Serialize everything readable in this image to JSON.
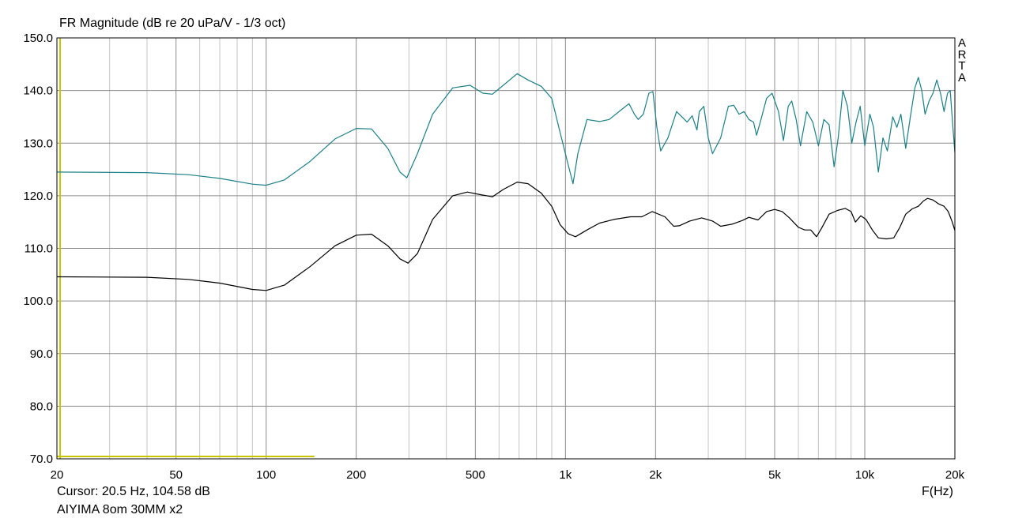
{
  "chart_data": {
    "type": "line",
    "title": "FR Magnitude (dB re 20 uPa/V - 1/3 oct)",
    "xlabel": "F(Hz)",
    "ylabel": "",
    "xscale": "log",
    "xlim": [
      20,
      20000
    ],
    "ylim": [
      70,
      150
    ],
    "grid": true,
    "x_ticks": [
      {
        "value": 20,
        "label": "20"
      },
      {
        "value": 50,
        "label": "50"
      },
      {
        "value": 100,
        "label": "100"
      },
      {
        "value": 200,
        "label": "200"
      },
      {
        "value": 500,
        "label": "500"
      },
      {
        "value": 1000,
        "label": "1k"
      },
      {
        "value": 2000,
        "label": "2k"
      },
      {
        "value": 5000,
        "label": "5k"
      },
      {
        "value": 10000,
        "label": "10k"
      },
      {
        "value": 20000,
        "label": "20k"
      }
    ],
    "y_ticks": [
      {
        "value": 150,
        "label": "150.0"
      },
      {
        "value": 140,
        "label": "140.0"
      },
      {
        "value": 130,
        "label": "130.0"
      },
      {
        "value": 120,
        "label": "120.0"
      },
      {
        "value": 110,
        "label": "110.0"
      },
      {
        "value": 100,
        "label": "100.0"
      },
      {
        "value": 90,
        "label": "90.0"
      },
      {
        "value": 80,
        "label": "80.0"
      },
      {
        "value": 70,
        "label": "70.0"
      }
    ],
    "series": [
      {
        "color": "#1a7f86",
        "points": [
          [
            20,
            124.5
          ],
          [
            40,
            124.4
          ],
          [
            55,
            124
          ],
          [
            70,
            123.3
          ],
          [
            90,
            122.2
          ],
          [
            100,
            122
          ],
          [
            115,
            123
          ],
          [
            140,
            126.5
          ],
          [
            170,
            130.8
          ],
          [
            200,
            132.8
          ],
          [
            225,
            132.7
          ],
          [
            255,
            129
          ],
          [
            280,
            124.5
          ],
          [
            295,
            123.4
          ],
          [
            320,
            128
          ],
          [
            360,
            135.5
          ],
          [
            420,
            140.5
          ],
          [
            480,
            141
          ],
          [
            530,
            139.5
          ],
          [
            570,
            139.3
          ],
          [
            620,
            141
          ],
          [
            690,
            143.2
          ],
          [
            750,
            142
          ],
          [
            830,
            140.8
          ],
          [
            900,
            138.5
          ],
          [
            960,
            132
          ],
          [
            1020,
            126
          ],
          [
            1060,
            122.3
          ],
          [
            1100,
            128
          ],
          [
            1180,
            134.5
          ],
          [
            1300,
            134.1
          ],
          [
            1400,
            134.5
          ],
          [
            1550,
            136.5
          ],
          [
            1630,
            137.5
          ],
          [
            1700,
            135.5
          ],
          [
            1750,
            134.5
          ],
          [
            1820,
            135.5
          ],
          [
            1900,
            139.5
          ],
          [
            1960,
            139.8
          ],
          [
            2020,
            133
          ],
          [
            2080,
            128.5
          ],
          [
            2200,
            131
          ],
          [
            2350,
            136
          ],
          [
            2450,
            135
          ],
          [
            2550,
            134
          ],
          [
            2650,
            135.2
          ],
          [
            2750,
            132.5
          ],
          [
            2800,
            136
          ],
          [
            2900,
            137
          ],
          [
            3000,
            131
          ],
          [
            3100,
            128
          ],
          [
            3300,
            131
          ],
          [
            3500,
            137
          ],
          [
            3650,
            137.2
          ],
          [
            3800,
            135.5
          ],
          [
            3950,
            136
          ],
          [
            4100,
            134.5
          ],
          [
            4250,
            134
          ],
          [
            4350,
            131.5
          ],
          [
            4500,
            134.5
          ],
          [
            4700,
            138.5
          ],
          [
            4900,
            139.5
          ],
          [
            5150,
            136
          ],
          [
            5350,
            130.5
          ],
          [
            5550,
            137
          ],
          [
            5700,
            138
          ],
          [
            5900,
            134.5
          ],
          [
            6100,
            129.5
          ],
          [
            6400,
            136
          ],
          [
            6700,
            134
          ],
          [
            7000,
            129.5
          ],
          [
            7300,
            134.5
          ],
          [
            7600,
            133.5
          ],
          [
            7900,
            125.5
          ],
          [
            8150,
            131
          ],
          [
            8450,
            140
          ],
          [
            8750,
            137
          ],
          [
            9050,
            130
          ],
          [
            9350,
            134
          ],
          [
            9650,
            137
          ],
          [
            10000,
            129.5
          ],
          [
            10400,
            135.5
          ],
          [
            10700,
            133
          ],
          [
            11100,
            124.5
          ],
          [
            11500,
            131
          ],
          [
            11900,
            128.5
          ],
          [
            12400,
            135
          ],
          [
            12800,
            133
          ],
          [
            13200,
            135.5
          ],
          [
            13700,
            129
          ],
          [
            14200,
            135
          ],
          [
            14700,
            140.5
          ],
          [
            15100,
            142.5
          ],
          [
            15500,
            140
          ],
          [
            15900,
            135.5
          ],
          [
            16400,
            138
          ],
          [
            16900,
            139.5
          ],
          [
            17400,
            142
          ],
          [
            17900,
            139.5
          ],
          [
            18400,
            136
          ],
          [
            18900,
            139.5
          ],
          [
            19300,
            140
          ],
          [
            19700,
            133
          ],
          [
            20000,
            128.2
          ]
        ]
      },
      {
        "color": "#000000",
        "points": [
          [
            20,
            104.6
          ],
          [
            40,
            104.5
          ],
          [
            55,
            104.1
          ],
          [
            70,
            103.4
          ],
          [
            90,
            102.2
          ],
          [
            100,
            102
          ],
          [
            115,
            103
          ],
          [
            140,
            106.5
          ],
          [
            170,
            110.5
          ],
          [
            200,
            112.5
          ],
          [
            225,
            112.7
          ],
          [
            255,
            110.5
          ],
          [
            280,
            108
          ],
          [
            298,
            107.2
          ],
          [
            320,
            109
          ],
          [
            360,
            115.5
          ],
          [
            420,
            120
          ],
          [
            470,
            120.7
          ],
          [
            520,
            120.2
          ],
          [
            570,
            119.8
          ],
          [
            620,
            121.2
          ],
          [
            690,
            122.6
          ],
          [
            750,
            122.3
          ],
          [
            830,
            120.5
          ],
          [
            900,
            118
          ],
          [
            960,
            114.5
          ],
          [
            1020,
            112.8
          ],
          [
            1080,
            112.2
          ],
          [
            1180,
            113.5
          ],
          [
            1300,
            114.8
          ],
          [
            1450,
            115.5
          ],
          [
            1650,
            116
          ],
          [
            1800,
            116
          ],
          [
            1950,
            117
          ],
          [
            2150,
            116
          ],
          [
            2300,
            114.2
          ],
          [
            2400,
            114.3
          ],
          [
            2600,
            115.2
          ],
          [
            2850,
            115.8
          ],
          [
            3100,
            115.2
          ],
          [
            3300,
            114.2
          ],
          [
            3600,
            114.6
          ],
          [
            3900,
            115.3
          ],
          [
            4100,
            115.9
          ],
          [
            4400,
            115.4
          ],
          [
            4700,
            117
          ],
          [
            5000,
            117.4
          ],
          [
            5300,
            117
          ],
          [
            5600,
            115.8
          ],
          [
            6000,
            114
          ],
          [
            6300,
            113.5
          ],
          [
            6600,
            113.5
          ],
          [
            6900,
            112.2
          ],
          [
            7200,
            114
          ],
          [
            7600,
            116.5
          ],
          [
            8100,
            117.2
          ],
          [
            8600,
            117.6
          ],
          [
            9000,
            117
          ],
          [
            9300,
            115
          ],
          [
            9700,
            116.2
          ],
          [
            10100,
            115.5
          ],
          [
            10600,
            113.5
          ],
          [
            11100,
            112
          ],
          [
            11800,
            111.8
          ],
          [
            12500,
            112
          ],
          [
            13100,
            114
          ],
          [
            13700,
            116.5
          ],
          [
            14400,
            117.5
          ],
          [
            15100,
            118
          ],
          [
            15700,
            119
          ],
          [
            16200,
            119.5
          ],
          [
            16900,
            119.2
          ],
          [
            17600,
            118.5
          ],
          [
            18400,
            118
          ],
          [
            19000,
            117
          ],
          [
            19600,
            115
          ],
          [
            20000,
            113.4
          ]
        ]
      }
    ],
    "cursor_text": "Cursor: 20.5 Hz, 104.58 dB",
    "description": "AIYIMA 8om 30MM x2",
    "brand_letters": [
      "A",
      "R",
      "T",
      "A"
    ],
    "cursor": {
      "freq_hz": 20.5,
      "db": 104.58,
      "marker_to_hz": 145
    },
    "colors": {
      "grid_major": "#8c8c8c",
      "grid_minor": "#c4c4c4",
      "cursor": "#c8c400",
      "frame": "#000000"
    }
  }
}
